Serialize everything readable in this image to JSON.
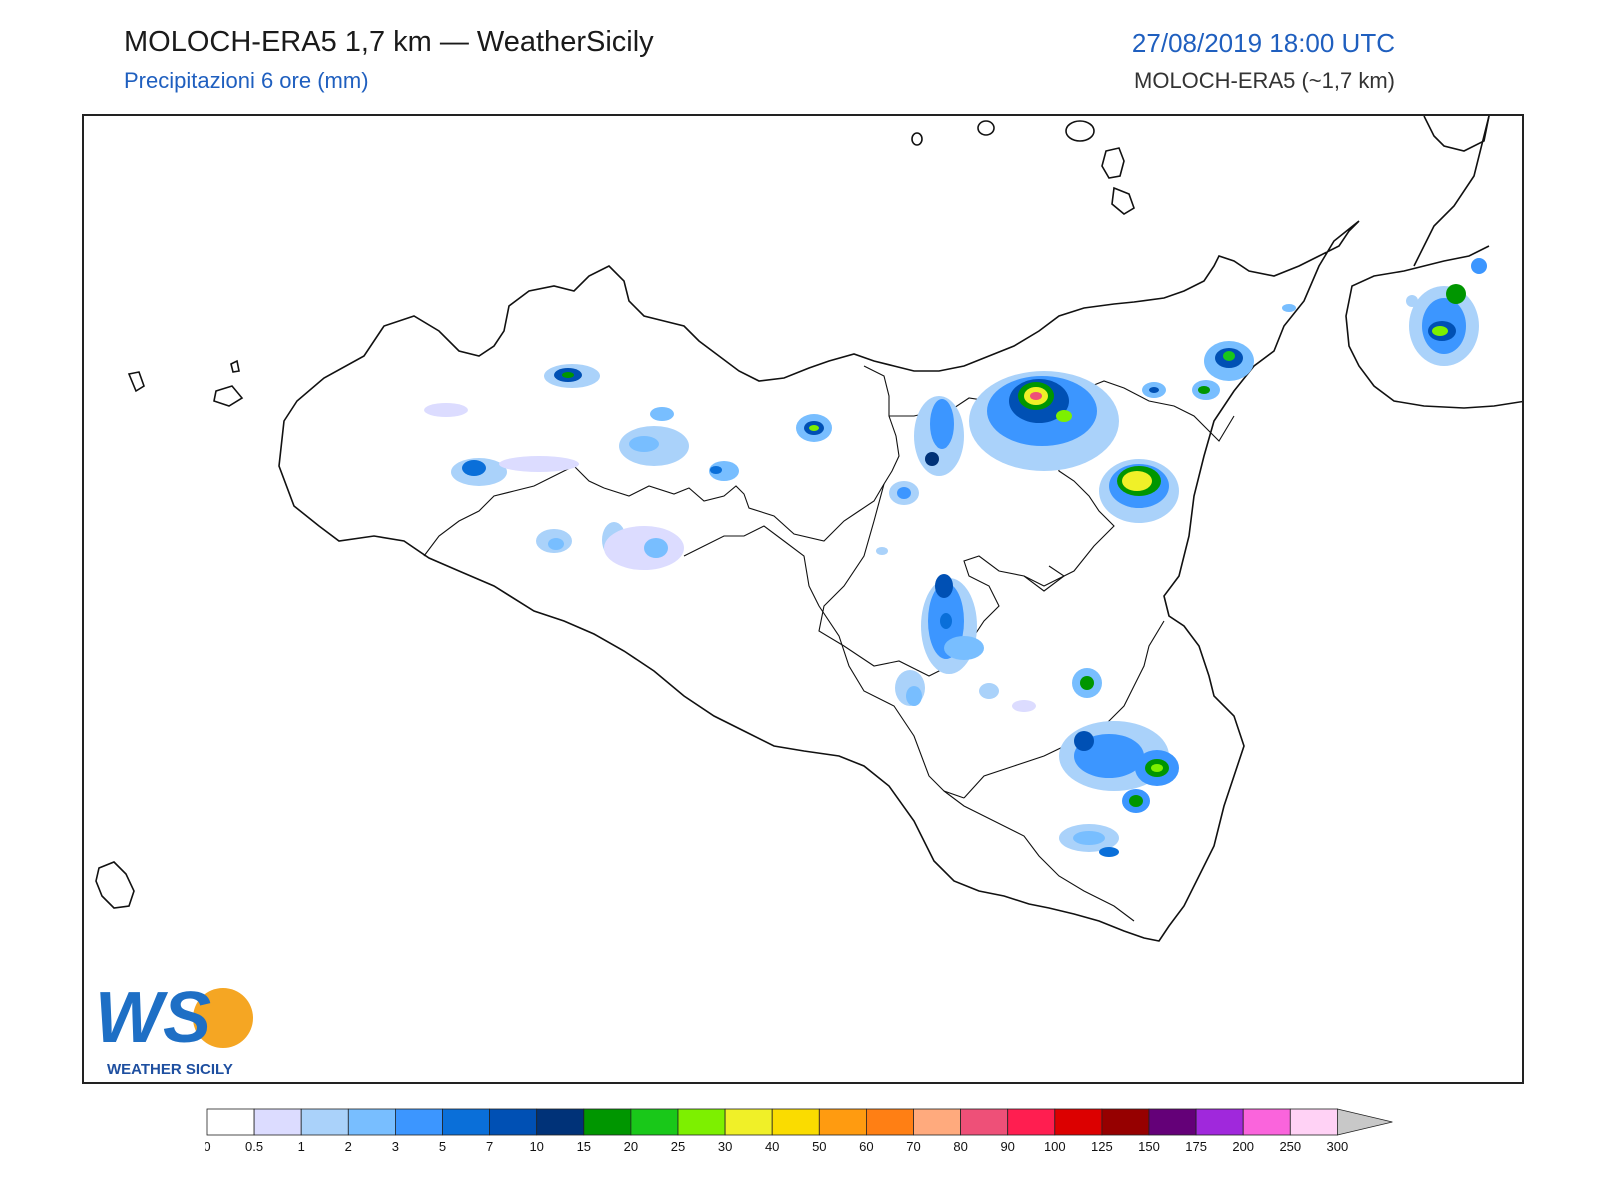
{
  "header": {
    "title": "MOLOCH-ERA5 1,7 km — WeatherSicily",
    "subtitle": "Precipitazioni 6 ore (mm)",
    "datetime": "27/08/2019 18:00 UTC",
    "model": "MOLOCH-ERA5 (~1,7 km)"
  },
  "logo": {
    "text": "WS",
    "caption": "WEATHER SICILY"
  },
  "colorbar": {
    "labels": [
      "0",
      "0.5",
      "1",
      "2",
      "3",
      "5",
      "7",
      "10",
      "15",
      "20",
      "25",
      "30",
      "40",
      "50",
      "60",
      "70",
      "80",
      "90",
      "100",
      "125",
      "150",
      "175",
      "200",
      "250",
      "300"
    ],
    "colors": [
      "#ffffff",
      "#dcdcff",
      "#aad2fa",
      "#78beff",
      "#3c96ff",
      "#0a6fd9",
      "#0050b4",
      "#003278",
      "#009600",
      "#19c819",
      "#7df000",
      "#f0f028",
      "#fadc00",
      "#ff9b10",
      "#ff7f14",
      "#ffaa7d",
      "#ee5078",
      "#ff1e50",
      "#dc0000",
      "#960000",
      "#640078",
      "#a028dc",
      "#fa64dc",
      "#ffd2f5"
    ],
    "extend_color": "#c8c8c8"
  }
}
